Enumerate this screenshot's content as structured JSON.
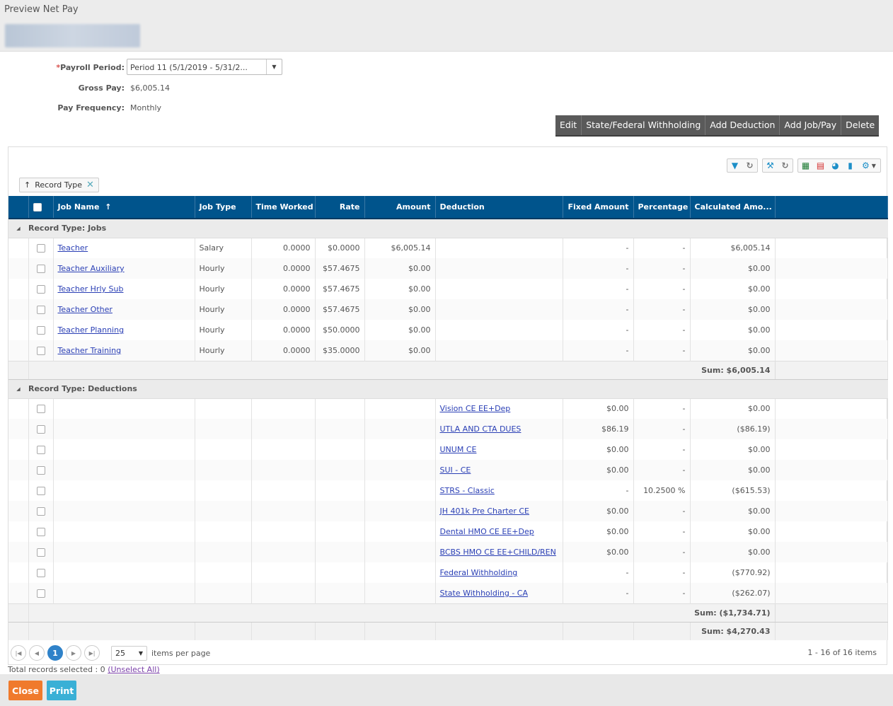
{
  "window": {
    "title": "Preview Net Pay"
  },
  "form": {
    "payroll_period_label": "Payroll Period:",
    "payroll_period_required": "*",
    "payroll_period_value": "Period 11 (5/1/2019 - 5/31/2...",
    "gross_pay_label": "Gross Pay:",
    "gross_pay_value": "$6,005.14",
    "pay_frequency_label": "Pay Frequency:",
    "pay_frequency_value": "Monthly"
  },
  "toolbar": {
    "edit": "Edit",
    "withholding": "State/Federal Withholding",
    "add_deduction": "Add Deduction",
    "add_job": "Add Job/Pay",
    "delete": "Delete"
  },
  "grid_icons": [
    "filter-icon",
    "refresh-icon",
    "wrench-icon",
    "reset-icon",
    "excel-icon",
    "pdf-icon",
    "chart-icon",
    "document-icon",
    "gear-icon"
  ],
  "group_tag": {
    "arrow": "↑",
    "label": "Record Type",
    "remove": "✕"
  },
  "columns": {
    "job_name": "Job Name",
    "sort_arrow": "↑",
    "job_type": "Job Type",
    "time_worked": "Time Worked",
    "rate": "Rate",
    "amount": "Amount",
    "deduction": "Deduction",
    "fixed_amount": "Fixed Amount",
    "percentage": "Percentage",
    "calculated_amount": "Calculated Amo..."
  },
  "groups": [
    {
      "label": "Record Type: Jobs",
      "sum": "Sum: $6,005.14",
      "rows": [
        {
          "job": "Teacher",
          "type": "Salary",
          "time": "0.0000",
          "rate": "$0.0000",
          "amount": "$6,005.14",
          "deduction": "",
          "fixed": "-",
          "pct": "-",
          "calc": "$6,005.14"
        },
        {
          "job": "Teacher Auxiliary",
          "type": "Hourly",
          "time": "0.0000",
          "rate": "$57.4675",
          "amount": "$0.00",
          "deduction": "",
          "fixed": "-",
          "pct": "-",
          "calc": "$0.00"
        },
        {
          "job": "Teacher Hrly Sub",
          "type": "Hourly",
          "time": "0.0000",
          "rate": "$57.4675",
          "amount": "$0.00",
          "deduction": "",
          "fixed": "-",
          "pct": "-",
          "calc": "$0.00"
        },
        {
          "job": "Teacher Other",
          "type": "Hourly",
          "time": "0.0000",
          "rate": "$57.4675",
          "amount": "$0.00",
          "deduction": "",
          "fixed": "-",
          "pct": "-",
          "calc": "$0.00"
        },
        {
          "job": "Teacher Planning",
          "type": "Hourly",
          "time": "0.0000",
          "rate": "$50.0000",
          "amount": "$0.00",
          "deduction": "",
          "fixed": "-",
          "pct": "-",
          "calc": "$0.00"
        },
        {
          "job": "Teacher Training",
          "type": "Hourly",
          "time": "0.0000",
          "rate": "$35.0000",
          "amount": "$0.00",
          "deduction": "",
          "fixed": "-",
          "pct": "-",
          "calc": "$0.00"
        }
      ]
    },
    {
      "label": "Record Type: Deductions",
      "sum": "Sum: ($1,734.71)",
      "rows": [
        {
          "job": "",
          "type": "",
          "time": "",
          "rate": "",
          "amount": "",
          "deduction": "Vision CE EE+Dep",
          "fixed": "$0.00",
          "pct": "-",
          "calc": "$0.00"
        },
        {
          "job": "",
          "type": "",
          "time": "",
          "rate": "",
          "amount": "",
          "deduction": "UTLA AND CTA DUES",
          "fixed": "$86.19",
          "pct": "-",
          "calc": "($86.19)"
        },
        {
          "job": "",
          "type": "",
          "time": "",
          "rate": "",
          "amount": "",
          "deduction": "UNUM CE",
          "fixed": "$0.00",
          "pct": "-",
          "calc": "$0.00"
        },
        {
          "job": "",
          "type": "",
          "time": "",
          "rate": "",
          "amount": "",
          "deduction": "SUI - CE",
          "fixed": "$0.00",
          "pct": "-",
          "calc": "$0.00"
        },
        {
          "job": "",
          "type": "",
          "time": "",
          "rate": "",
          "amount": "",
          "deduction": "STRS - Classic",
          "fixed": "-",
          "pct": "10.2500 %",
          "calc": "($615.53)"
        },
        {
          "job": "",
          "type": "",
          "time": "",
          "rate": "",
          "amount": "",
          "deduction": "JH 401k Pre Charter CE",
          "fixed": "$0.00",
          "pct": "-",
          "calc": "$0.00"
        },
        {
          "job": "",
          "type": "",
          "time": "",
          "rate": "",
          "amount": "",
          "deduction": "Dental HMO CE EE+Dep",
          "fixed": "$0.00",
          "pct": "-",
          "calc": "$0.00"
        },
        {
          "job": "",
          "type": "",
          "time": "",
          "rate": "",
          "amount": "",
          "deduction": "BCBS HMO CE EE+CHILD/REN",
          "fixed": "$0.00",
          "pct": "-",
          "calc": "$0.00"
        },
        {
          "job": "",
          "type": "",
          "time": "",
          "rate": "",
          "amount": "",
          "deduction": "Federal Withholding",
          "fixed": "-",
          "pct": "-",
          "calc": "($770.92)"
        },
        {
          "job": "",
          "type": "",
          "time": "",
          "rate": "",
          "amount": "",
          "deduction": "State Withholding - CA",
          "fixed": "-",
          "pct": "-",
          "calc": "($262.07)"
        }
      ]
    }
  ],
  "total": "Sum: $4,270.43",
  "pager": {
    "current_page": "1",
    "page_size": "25",
    "page_size_label": "items per page",
    "info": "1 - 16 of 16 items"
  },
  "selection": {
    "text": "Total records selected : 0",
    "link": "(Unselect All)"
  },
  "buttons": {
    "close": "Close",
    "print": "Print"
  },
  "colors": {
    "header_bg": "#00548c",
    "close_btn": "#f07a2c",
    "print_btn": "#3ab0d6",
    "toolbar_bg": "#5a5a5a"
  }
}
